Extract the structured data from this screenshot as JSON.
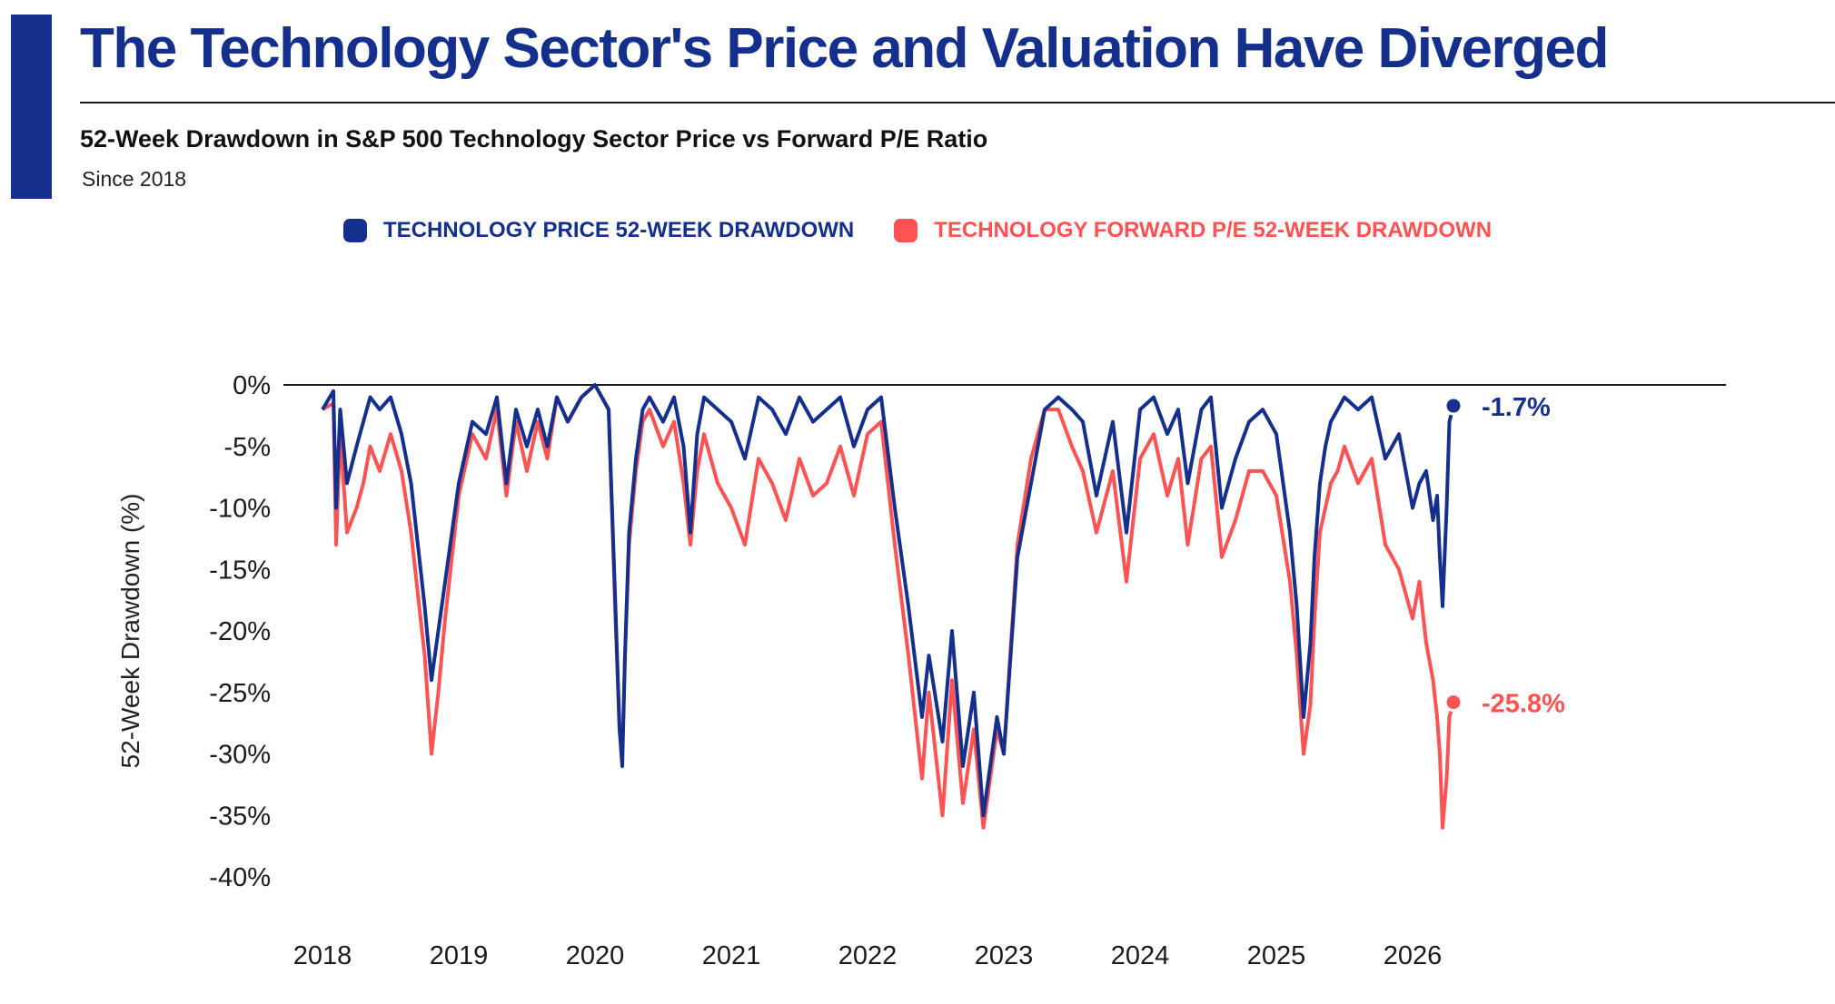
{
  "header": {
    "title": "The Technology Sector's Price and Valuation Have Diverged",
    "subtitle": "52-Week Drawdown in S&P 500 Technology Sector Price vs Forward P/E Ratio",
    "since": "Since 2018"
  },
  "colors": {
    "accent": "#14308c",
    "price": "#14308c",
    "pe": "#ff5252"
  },
  "chart_data": {
    "type": "line",
    "title": "52-Week Drawdown in S&P 500 Technology Sector Price vs Forward P/E Ratio",
    "subtitle": "Since 2018",
    "xlabel": "",
    "ylabel": "52-Week Drawdown (%)",
    "xlim": [
      2018.0,
      2026.45
    ],
    "ylim": [
      -40,
      0
    ],
    "x_ticks": [
      "2018",
      "2019",
      "2020",
      "2021",
      "2022",
      "2023",
      "2024",
      "2025",
      "2026"
    ],
    "y_ticks": [
      "0%",
      "-5%",
      "-10%",
      "-15%",
      "-20%",
      "-25%",
      "-30%",
      "-35%",
      "-40%"
    ],
    "y_tick_values": [
      0,
      -5,
      -10,
      -15,
      -20,
      -25,
      -30,
      -35,
      -40
    ],
    "grid": false,
    "legend_position": "top-center",
    "end_labels": [
      {
        "series": "TECHNOLOGY PRICE 52-WEEK DRAWDOWN",
        "text": "-1.7%",
        "value": -1.7
      },
      {
        "series": "TECHNOLOGY FORWARD P/E 52-WEEK DRAWDOWN",
        "text": "-25.8%",
        "value": -25.8
      }
    ],
    "series": [
      {
        "name": "TECHNOLOGY PRICE 52-WEEK DRAWDOWN",
        "color": "#14308c",
        "x": [
          2018.0,
          2018.08,
          2018.1,
          2018.13,
          2018.18,
          2018.25,
          2018.3,
          2018.35,
          2018.42,
          2018.5,
          2018.58,
          2018.65,
          2018.7,
          2018.75,
          2018.8,
          2018.85,
          2018.9,
          2018.95,
          2019.0,
          2019.1,
          2019.2,
          2019.28,
          2019.35,
          2019.42,
          2019.5,
          2019.58,
          2019.65,
          2019.72,
          2019.8,
          2019.9,
          2020.0,
          2020.1,
          2020.15,
          2020.18,
          2020.2,
          2020.22,
          2020.25,
          2020.3,
          2020.35,
          2020.4,
          2020.5,
          2020.58,
          2020.65,
          2020.7,
          2020.75,
          2020.8,
          2020.9,
          2021.0,
          2021.1,
          2021.2,
          2021.3,
          2021.4,
          2021.5,
          2021.6,
          2021.7,
          2021.8,
          2021.9,
          2022.0,
          2022.1,
          2022.2,
          2022.3,
          2022.4,
          2022.45,
          2022.55,
          2022.62,
          2022.7,
          2022.78,
          2022.85,
          2022.95,
          2023.0,
          2023.1,
          2023.2,
          2023.3,
          2023.4,
          2023.5,
          2023.58,
          2023.68,
          2023.8,
          2023.9,
          2024.0,
          2024.1,
          2024.2,
          2024.28,
          2024.35,
          2024.45,
          2024.52,
          2024.6,
          2024.7,
          2024.8,
          2024.9,
          2025.0,
          2025.1,
          2025.15,
          2025.2,
          2025.25,
          2025.28,
          2025.32,
          2025.36,
          2025.4,
          2025.45,
          2025.5,
          2025.6,
          2025.7,
          2025.8,
          2025.9,
          2026.0,
          2026.05,
          2026.1,
          2026.15,
          2026.18,
          2026.2,
          2026.22,
          2026.25,
          2026.27,
          2026.3
        ],
        "y": [
          -2,
          -0.5,
          -10,
          -2,
          -8,
          -5,
          -3,
          -1,
          -2,
          -1,
          -4,
          -8,
          -13,
          -18,
          -24,
          -20,
          -16,
          -12,
          -8,
          -3,
          -4,
          -1,
          -8,
          -2,
          -5,
          -2,
          -5,
          -1,
          -3,
          -1,
          0,
          -2,
          -18,
          -28,
          -31,
          -22,
          -12,
          -6,
          -2,
          -1,
          -3,
          -1,
          -5,
          -12,
          -4,
          -1,
          -2,
          -3,
          -6,
          -1,
          -2,
          -4,
          -1,
          -3,
          -2,
          -1,
          -5,
          -2,
          -1,
          -10,
          -18,
          -27,
          -22,
          -29,
          -20,
          -31,
          -25,
          -35,
          -27,
          -30,
          -14,
          -8,
          -2,
          -1,
          -2,
          -3,
          -9,
          -3,
          -12,
          -2,
          -1,
          -4,
          -2,
          -8,
          -2,
          -1,
          -10,
          -6,
          -3,
          -2,
          -4,
          -12,
          -18,
          -27,
          -21,
          -14,
          -8,
          -5,
          -3,
          -2,
          -1,
          -2,
          -1,
          -6,
          -4,
          -10,
          -8,
          -7,
          -11,
          -9,
          -14,
          -18,
          -10,
          -3,
          -1.7
        ]
      },
      {
        "name": "TECHNOLOGY FORWARD P/E 52-WEEK DRAWDOWN",
        "color": "#ff5252",
        "x": [
          2018.0,
          2018.08,
          2018.1,
          2018.13,
          2018.18,
          2018.25,
          2018.3,
          2018.35,
          2018.42,
          2018.5,
          2018.58,
          2018.65,
          2018.7,
          2018.75,
          2018.8,
          2018.85,
          2018.9,
          2018.95,
          2019.0,
          2019.1,
          2019.2,
          2019.28,
          2019.35,
          2019.42,
          2019.5,
          2019.58,
          2019.65,
          2019.72,
          2019.8,
          2019.9,
          2020.0,
          2020.1,
          2020.15,
          2020.18,
          2020.2,
          2020.22,
          2020.25,
          2020.3,
          2020.35,
          2020.4,
          2020.5,
          2020.58,
          2020.65,
          2020.7,
          2020.75,
          2020.8,
          2020.9,
          2021.0,
          2021.1,
          2021.2,
          2021.3,
          2021.4,
          2021.5,
          2021.6,
          2021.7,
          2021.8,
          2021.9,
          2022.0,
          2022.1,
          2022.2,
          2022.3,
          2022.4,
          2022.45,
          2022.55,
          2022.62,
          2022.7,
          2022.78,
          2022.85,
          2022.95,
          2023.0,
          2023.1,
          2023.2,
          2023.3,
          2023.4,
          2023.5,
          2023.58,
          2023.68,
          2023.8,
          2023.9,
          2024.0,
          2024.1,
          2024.2,
          2024.28,
          2024.35,
          2024.45,
          2024.52,
          2024.6,
          2024.7,
          2024.8,
          2024.9,
          2025.0,
          2025.1,
          2025.15,
          2025.2,
          2025.25,
          2025.28,
          2025.32,
          2025.36,
          2025.4,
          2025.45,
          2025.5,
          2025.6,
          2025.7,
          2025.8,
          2025.9,
          2026.0,
          2026.05,
          2026.1,
          2026.15,
          2026.18,
          2026.2,
          2026.22,
          2026.25,
          2026.27,
          2026.3
        ],
        "y": [
          -2,
          -1.5,
          -13,
          -4,
          -12,
          -10,
          -8,
          -5,
          -7,
          -4,
          -7,
          -12,
          -17,
          -22,
          -30,
          -25,
          -19,
          -14,
          -9,
          -4,
          -6,
          -2,
          -9,
          -3,
          -7,
          -3,
          -6,
          -1,
          -3,
          -1,
          0,
          -2,
          -19,
          -28,
          -30,
          -22,
          -13,
          -7,
          -3,
          -2,
          -5,
          -3,
          -8,
          -13,
          -7,
          -4,
          -8,
          -10,
          -13,
          -6,
          -8,
          -11,
          -6,
          -9,
          -8,
          -5,
          -9,
          -4,
          -3,
          -13,
          -22,
          -32,
          -25,
          -35,
          -24,
          -34,
          -28,
          -36,
          -28,
          -30,
          -13,
          -6,
          -2,
          -2,
          -5,
          -7,
          -12,
          -7,
          -16,
          -6,
          -4,
          -9,
          -6,
          -13,
          -6,
          -5,
          -14,
          -11,
          -7,
          -7,
          -9,
          -16,
          -22,
          -30,
          -26,
          -19,
          -12,
          -10,
          -8,
          -7,
          -5,
          -8,
          -6,
          -13,
          -15,
          -19,
          -16,
          -21,
          -24,
          -27,
          -30,
          -36,
          -32,
          -27,
          -25.8
        ]
      }
    ]
  }
}
